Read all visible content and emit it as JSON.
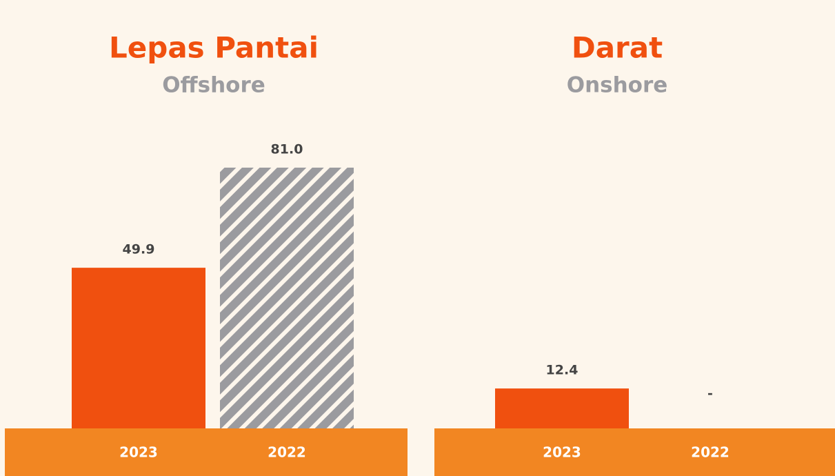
{
  "chart_data": [
    {
      "type": "bar",
      "title": "Lepas Pantai",
      "subtitle": "Offshore",
      "categories": [
        "2023",
        "2022"
      ],
      "values": [
        49.9,
        81.0
      ],
      "value_labels": [
        "49.9",
        "81.0"
      ],
      "colors": [
        "#f0500f",
        "#9b9b9f"
      ],
      "patterns": [
        "solid",
        "hatch"
      ]
    },
    {
      "type": "bar",
      "title": "Darat",
      "subtitle": "Onshore",
      "categories": [
        "2023",
        "2022"
      ],
      "values": [
        12.4,
        null
      ],
      "value_labels": [
        "12.4",
        "-"
      ],
      "colors": [
        "#f0500f",
        "#9b9b9f"
      ],
      "patterns": [
        "solid",
        "hatch"
      ]
    }
  ]
}
